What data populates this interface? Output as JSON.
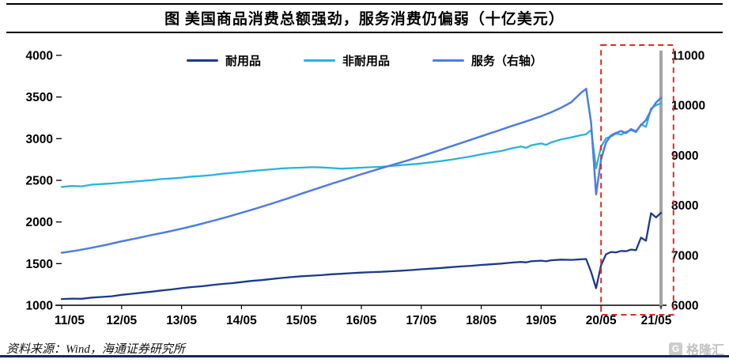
{
  "title": "图 美国商品消费总额强劲，服务消费仍偏弱（十亿美元）",
  "source": "资料来源：Wind，海通证券研究所",
  "watermark": {
    "icon": "G",
    "label": "格隆汇"
  },
  "chart_data": {
    "type": "line",
    "title": "美国商品消费总额强劲，服务消费仍偏弱（十亿美元）",
    "x_unit": "months since 2011-05",
    "x_tick_labels": [
      "11/05",
      "12/05",
      "13/05",
      "14/05",
      "15/05",
      "16/05",
      "17/05",
      "18/05",
      "19/05",
      "20/05",
      "21/05"
    ],
    "x_tick_positions": [
      0,
      12,
      24,
      36,
      48,
      60,
      72,
      84,
      96,
      108,
      120
    ],
    "left_axis": {
      "min": 1000,
      "max": 4000,
      "ticks": [
        1000,
        1500,
        2000,
        2500,
        3000,
        3500,
        4000
      ]
    },
    "right_axis": {
      "min": 6000,
      "max": 11000,
      "ticks": [
        6000,
        7000,
        8000,
        9000,
        10000,
        11000
      ]
    },
    "grid": false,
    "legend_position": "top",
    "highlight_box": {
      "start_month": 108,
      "end_month": 122.5,
      "color": "#e02b20"
    },
    "series": [
      {
        "name": "耐用品",
        "axis": "left",
        "color": "#1c3a8c",
        "width": 2.3,
        "points": [
          [
            0,
            1075
          ],
          [
            2,
            1080
          ],
          [
            4,
            1078
          ],
          [
            6,
            1092
          ],
          [
            8,
            1100
          ],
          [
            10,
            1108
          ],
          [
            12,
            1125
          ],
          [
            14,
            1138
          ],
          [
            16,
            1150
          ],
          [
            18,
            1163
          ],
          [
            20,
            1178
          ],
          [
            22,
            1190
          ],
          [
            24,
            1205
          ],
          [
            26,
            1218
          ],
          [
            28,
            1228
          ],
          [
            30,
            1242
          ],
          [
            32,
            1255
          ],
          [
            34,
            1265
          ],
          [
            36,
            1278
          ],
          [
            38,
            1292
          ],
          [
            40,
            1302
          ],
          [
            42,
            1315
          ],
          [
            44,
            1328
          ],
          [
            46,
            1338
          ],
          [
            48,
            1348
          ],
          [
            50,
            1355
          ],
          [
            52,
            1362
          ],
          [
            54,
            1372
          ],
          [
            56,
            1378
          ],
          [
            58,
            1385
          ],
          [
            60,
            1392
          ],
          [
            62,
            1398
          ],
          [
            64,
            1402
          ],
          [
            66,
            1408
          ],
          [
            68,
            1415
          ],
          [
            70,
            1422
          ],
          [
            72,
            1432
          ],
          [
            74,
            1440
          ],
          [
            76,
            1448
          ],
          [
            78,
            1458
          ],
          [
            80,
            1466
          ],
          [
            82,
            1474
          ],
          [
            84,
            1484
          ],
          [
            86,
            1492
          ],
          [
            88,
            1500
          ],
          [
            90,
            1512
          ],
          [
            92,
            1520
          ],
          [
            93,
            1515
          ],
          [
            94,
            1528
          ],
          [
            96,
            1535
          ],
          [
            97,
            1528
          ],
          [
            98,
            1540
          ],
          [
            100,
            1548
          ],
          [
            102,
            1545
          ],
          [
            104,
            1552
          ],
          [
            105,
            1555
          ],
          [
            106,
            1400
          ],
          [
            107,
            1205
          ],
          [
            108,
            1480
          ],
          [
            109,
            1612
          ],
          [
            110,
            1640
          ],
          [
            111,
            1635
          ],
          [
            112,
            1652
          ],
          [
            113,
            1648
          ],
          [
            114,
            1668
          ],
          [
            115,
            1662
          ],
          [
            116,
            1812
          ],
          [
            117,
            1775
          ],
          [
            118,
            2105
          ],
          [
            119,
            2055
          ],
          [
            120,
            2110
          ]
        ]
      },
      {
        "name": "非耐用品",
        "axis": "left",
        "color": "#2ab2dd",
        "width": 2.3,
        "points": [
          [
            0,
            2420
          ],
          [
            2,
            2432
          ],
          [
            4,
            2428
          ],
          [
            6,
            2448
          ],
          [
            8,
            2455
          ],
          [
            10,
            2462
          ],
          [
            12,
            2472
          ],
          [
            14,
            2482
          ],
          [
            16,
            2492
          ],
          [
            18,
            2502
          ],
          [
            20,
            2515
          ],
          [
            22,
            2522
          ],
          [
            24,
            2532
          ],
          [
            26,
            2545
          ],
          [
            28,
            2552
          ],
          [
            30,
            2562
          ],
          [
            32,
            2578
          ],
          [
            34,
            2588
          ],
          [
            36,
            2600
          ],
          [
            38,
            2612
          ],
          [
            40,
            2622
          ],
          [
            42,
            2632
          ],
          [
            44,
            2642
          ],
          [
            46,
            2648
          ],
          [
            48,
            2652
          ],
          [
            50,
            2658
          ],
          [
            52,
            2655
          ],
          [
            54,
            2648
          ],
          [
            56,
            2640
          ],
          [
            58,
            2645
          ],
          [
            60,
            2652
          ],
          [
            62,
            2658
          ],
          [
            64,
            2662
          ],
          [
            66,
            2672
          ],
          [
            68,
            2682
          ],
          [
            70,
            2692
          ],
          [
            72,
            2702
          ],
          [
            74,
            2716
          ],
          [
            76,
            2732
          ],
          [
            78,
            2748
          ],
          [
            80,
            2768
          ],
          [
            82,
            2788
          ],
          [
            84,
            2812
          ],
          [
            86,
            2832
          ],
          [
            88,
            2852
          ],
          [
            90,
            2882
          ],
          [
            92,
            2905
          ],
          [
            93,
            2890
          ],
          [
            94,
            2920
          ],
          [
            96,
            2942
          ],
          [
            97,
            2925
          ],
          [
            98,
            2955
          ],
          [
            100,
            2992
          ],
          [
            102,
            3015
          ],
          [
            104,
            3042
          ],
          [
            105,
            3052
          ],
          [
            106,
            3105
          ],
          [
            107,
            2645
          ],
          [
            108,
            2905
          ],
          [
            109,
            3005
          ],
          [
            110,
            3025
          ],
          [
            111,
            3062
          ],
          [
            112,
            3048
          ],
          [
            113,
            3082
          ],
          [
            114,
            3102
          ],
          [
            115,
            3078
          ],
          [
            116,
            3172
          ],
          [
            117,
            3142
          ],
          [
            118,
            3362
          ],
          [
            119,
            3402
          ],
          [
            120,
            3425
          ]
        ]
      },
      {
        "name": "服务（右轴）",
        "axis": "right",
        "color": "#4d7de0",
        "width": 2.5,
        "points": [
          [
            0,
            7050
          ],
          [
            3,
            7095
          ],
          [
            6,
            7150
          ],
          [
            9,
            7210
          ],
          [
            12,
            7280
          ],
          [
            15,
            7340
          ],
          [
            18,
            7405
          ],
          [
            21,
            7465
          ],
          [
            24,
            7532
          ],
          [
            27,
            7605
          ],
          [
            30,
            7682
          ],
          [
            33,
            7762
          ],
          [
            36,
            7850
          ],
          [
            39,
            7940
          ],
          [
            42,
            8032
          ],
          [
            45,
            8130
          ],
          [
            48,
            8232
          ],
          [
            51,
            8330
          ],
          [
            54,
            8430
          ],
          [
            57,
            8525
          ],
          [
            60,
            8622
          ],
          [
            63,
            8712
          ],
          [
            66,
            8802
          ],
          [
            69,
            8890
          ],
          [
            72,
            8982
          ],
          [
            75,
            9080
          ],
          [
            78,
            9182
          ],
          [
            81,
            9280
          ],
          [
            84,
            9382
          ],
          [
            87,
            9480
          ],
          [
            90,
            9582
          ],
          [
            93,
            9680
          ],
          [
            96,
            9782
          ],
          [
            98,
            9860
          ],
          [
            100,
            9952
          ],
          [
            102,
            10060
          ],
          [
            104,
            10250
          ],
          [
            105,
            10330
          ],
          [
            106,
            9650
          ],
          [
            107,
            8220
          ],
          [
            108,
            8920
          ],
          [
            109,
            9260
          ],
          [
            110,
            9400
          ],
          [
            111,
            9450
          ],
          [
            112,
            9485
          ],
          [
            113,
            9445
          ],
          [
            114,
            9525
          ],
          [
            115,
            9480
          ],
          [
            116,
            9605
          ],
          [
            117,
            9705
          ],
          [
            118,
            9905
          ],
          [
            119,
            10055
          ],
          [
            120,
            10150
          ]
        ]
      }
    ]
  }
}
